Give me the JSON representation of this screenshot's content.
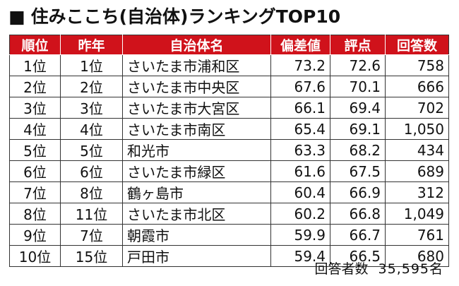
{
  "title": {
    "marker": "■",
    "text": "住みここち(自治体)ランキングTOP10"
  },
  "table": {
    "headers": [
      "順位",
      "昨年",
      "自治体名",
      "偏差値",
      "評点",
      "回答数"
    ],
    "rows": [
      {
        "rank": "1位",
        "prev": "1位",
        "name": "さいたま市浦和区",
        "dev": "73.2",
        "score": "72.6",
        "count": "758"
      },
      {
        "rank": "2位",
        "prev": "2位",
        "name": "さいたま市中央区",
        "dev": "67.6",
        "score": "70.1",
        "count": "666"
      },
      {
        "rank": "3位",
        "prev": "3位",
        "name": "さいたま市大宮区",
        "dev": "66.1",
        "score": "69.4",
        "count": "702"
      },
      {
        "rank": "4位",
        "prev": "4位",
        "name": "さいたま市南区",
        "dev": "65.4",
        "score": "69.1",
        "count": "1,050"
      },
      {
        "rank": "5位",
        "prev": "5位",
        "name": "和光市",
        "dev": "63.3",
        "score": "68.2",
        "count": "434"
      },
      {
        "rank": "6位",
        "prev": "6位",
        "name": "さいたま市緑区",
        "dev": "61.6",
        "score": "67.5",
        "count": "689"
      },
      {
        "rank": "7位",
        "prev": "8位",
        "name": "鶴ヶ島市",
        "dev": "60.4",
        "score": "66.9",
        "count": "312"
      },
      {
        "rank": "8位",
        "prev": "11位",
        "name": "さいたま市北区",
        "dev": "60.2",
        "score": "66.8",
        "count": "1,049"
      },
      {
        "rank": "9位",
        "prev": "7位",
        "name": "朝霞市",
        "dev": "59.9",
        "score": "66.7",
        "count": "761"
      },
      {
        "rank": "10位",
        "prev": "15位",
        "name": "戸田市",
        "dev": "59.4",
        "score": "66.5",
        "count": "680"
      }
    ]
  },
  "footer": {
    "label": "回答者数",
    "value": "35,595名"
  },
  "colors": {
    "header_bg": "#d0121b",
    "header_text": "#ffffff"
  }
}
